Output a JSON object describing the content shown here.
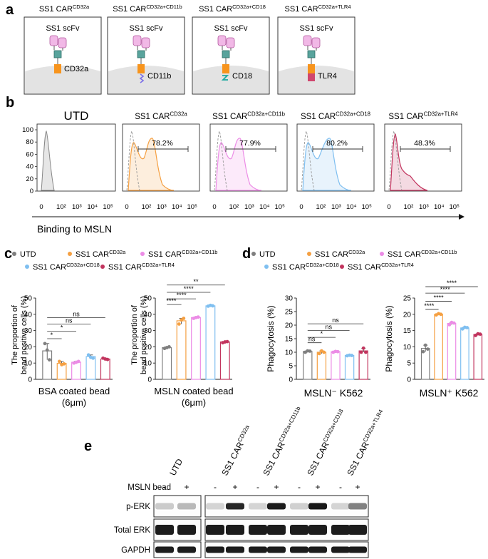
{
  "colors": {
    "utd": "#7f7f7f",
    "cd32a": "#f5a042",
    "cd11b": "#ec8ce6",
    "cd18": "#7fbff0",
    "tlr4": "#c2345e"
  },
  "panel_a": {
    "letter": "a",
    "scfv": "SS1 scFv",
    "constructs": [
      {
        "base": "SS1 CAR",
        "sup": "CD32a",
        "domain": "CD32a"
      },
      {
        "base": "SS1 CAR",
        "sup": "CD32a+CD11b",
        "domain": "CD11b"
      },
      {
        "base": "SS1 CAR",
        "sup": "CD32a+CD18",
        "domain": "CD18"
      },
      {
        "base": "SS1 CAR",
        "sup": "CD32a+TLR4",
        "domain": "TLR4"
      }
    ]
  },
  "panel_b": {
    "letter": "b",
    "utd_title": "UTD",
    "titles": [
      {
        "base": "SS1 CAR",
        "sup": "CD32a"
      },
      {
        "base": "SS1 CAR",
        "sup": "CD32a+CD11b"
      },
      {
        "base": "SS1 CAR",
        "sup": "CD32a+CD18"
      },
      {
        "base": "SS1 CAR",
        "sup": "CD32a+TLR4"
      }
    ],
    "percents": [
      "78.2%",
      "77.9%",
      "80.2%",
      "48.3%"
    ],
    "y_ticks": [
      "100",
      "80",
      "60",
      "40",
      "20",
      "0"
    ],
    "x_ticks": [
      "0",
      "10²",
      "10³",
      "10⁴",
      "10⁵"
    ],
    "xlabel": "Binding to MSLN"
  },
  "panel_c": {
    "letter": "c",
    "legend": [
      {
        "base": "UTD",
        "sup": ""
      },
      {
        "base": "SS1 CAR",
        "sup": "CD32a"
      },
      {
        "base": "SS1 CAR",
        "sup": "CD32a+CD11b"
      },
      {
        "base": "SS1 CAR",
        "sup": "CD32a+CD18"
      },
      {
        "base": "SS1 CAR",
        "sup": "CD32a+TLR4"
      }
    ],
    "ylabel_line1": "The proportion of",
    "ylabel_line2": "bead positive cells (%)",
    "bsa_label": "BSA coated bead",
    "msln_label": "MSLN coated bead",
    "size_label": "(6μm)",
    "bsa_ticks": [
      "50",
      "40",
      "30",
      "20",
      "10",
      "0"
    ],
    "msln_ticks": [
      "50",
      "40",
      "30",
      "20",
      "10",
      "0"
    ],
    "bsa_sig": [
      "ns",
      "ns",
      "*",
      "*"
    ],
    "msln_sig": [
      "**",
      "****",
      "****",
      "****"
    ]
  },
  "panel_d": {
    "letter": "d",
    "ylabel": "Phagocytosis (%)",
    "neg_label": "MSLN⁻ K562",
    "pos_label": "MSLN⁺ K562",
    "neg_ticks": [
      "30",
      "25",
      "20",
      "15",
      "10",
      "5",
      "0"
    ],
    "pos_ticks": [
      "25",
      "20",
      "15",
      "10",
      "5",
      "0"
    ],
    "neg_sig": [
      "ns",
      "ns",
      "*",
      "ns"
    ],
    "pos_sig": [
      "****",
      "****",
      "****",
      "****"
    ]
  },
  "panel_e": {
    "letter": "e",
    "lanes": [
      {
        "base": "UTD",
        "sup": ""
      },
      {
        "base": "SS1 CAR",
        "sup": "CD32a"
      },
      {
        "base": "SS1 CAR",
        "sup": "CD32a+CD11b"
      },
      {
        "base": "SS1 CAR",
        "sup": "CD32a+CD18"
      },
      {
        "base": "SS1 CAR",
        "sup": "CD32a+TLR4"
      }
    ],
    "bead_label": "MSLN bead",
    "minus": "-",
    "plus": "+",
    "rows": [
      "p-ERK",
      "Total ERK",
      "GAPDH"
    ]
  },
  "chart_data": [
    {
      "type": "bar",
      "title": "BSA coated bead (6μm)",
      "ylabel": "The proportion of bead positive cells (%)",
      "categories": [
        "UTD",
        "SS1 CAR CD32a",
        "SS1 CAR CD32a+CD11b",
        "SS1 CAR CD32a+CD18",
        "SS1 CAR CD32a+TLR4"
      ],
      "values": [
        17.5,
        9.8,
        10.5,
        14.0,
        12.5
      ],
      "points": [
        [
          22,
          18,
          12
        ],
        [
          11,
          9,
          9.5
        ],
        [
          10,
          10.5,
          11
        ],
        [
          15,
          13.5,
          13
        ],
        [
          13,
          12.5,
          12.2
        ]
      ],
      "ylim": [
        0,
        50
      ]
    },
    {
      "type": "bar",
      "title": "MSLN coated bead (6μm)",
      "ylabel": "The proportion of bead positive cells (%)",
      "categories": [
        "UTD",
        "SS1 CAR CD32a",
        "SS1 CAR CD32a+CD11b",
        "SS1 CAR CD32a+CD18",
        "SS1 CAR CD32a+TLR4"
      ],
      "values": [
        19.5,
        36.0,
        38.0,
        45.2,
        23.0
      ],
      "points": [
        [
          19,
          19.5,
          20
        ],
        [
          34,
          36.5,
          37.5
        ],
        [
          37.5,
          38,
          38.3
        ],
        [
          45,
          45.5,
          45.2
        ],
        [
          22.5,
          23,
          23.2
        ]
      ],
      "ylim": [
        0,
        50
      ]
    },
    {
      "type": "bar",
      "title": "MSLN⁻ K562",
      "ylabel": "Phagocytosis (%)",
      "categories": [
        "UTD",
        "SS1 CAR CD32a",
        "SS1 CAR CD32a+CD11b",
        "SS1 CAR CD32a+CD18",
        "SS1 CAR CD32a+TLR4"
      ],
      "values": [
        10.3,
        10.0,
        10.2,
        8.8,
        10.5
      ],
      "points": [
        [
          10,
          10.5,
          10.4
        ],
        [
          9.5,
          10.5,
          10
        ],
        [
          10,
          10.3,
          10.2
        ],
        [
          8.7,
          8.9,
          8.8
        ],
        [
          10,
          11.5,
          10
        ]
      ],
      "ylim": [
        0,
        30
      ]
    },
    {
      "type": "bar",
      "title": "MSLN⁺ K562",
      "ylabel": "Phagocytosis (%)",
      "categories": [
        "UTD",
        "SS1 CAR CD32a",
        "SS1 CAR CD32a+CD11b",
        "SS1 CAR CD32a+CD18",
        "SS1 CAR CD32a+TLR4"
      ],
      "values": [
        9.5,
        20.0,
        17.2,
        15.8,
        13.8
      ],
      "points": [
        [
          8.5,
          10.5,
          9.3
        ],
        [
          19.8,
          20.2,
          20
        ],
        [
          16.8,
          17.5,
          17.3
        ],
        [
          15.5,
          16,
          15.9
        ],
        [
          13.5,
          14,
          13.9
        ]
      ],
      "ylim": [
        0,
        25
      ]
    }
  ]
}
